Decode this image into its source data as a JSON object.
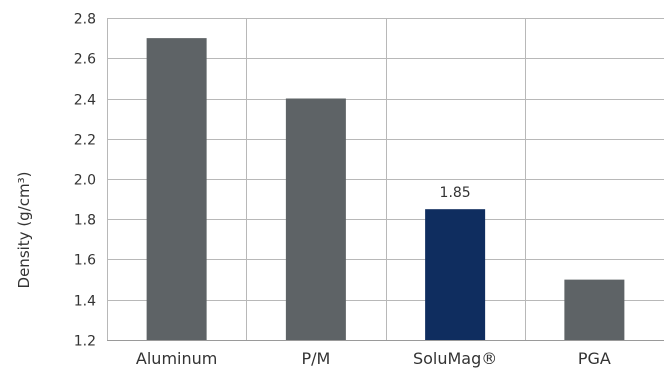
{
  "chart_data": {
    "type": "bar",
    "categories": [
      "Aluminum",
      "P/M",
      "SoluMag®",
      "PGA"
    ],
    "values": [
      2.7,
      2.4,
      1.85,
      1.5
    ],
    "ylabel": "Density (g/cm³)",
    "xlabel": "",
    "ylim": [
      1.2,
      2.8
    ],
    "yticks": [
      "1.2",
      "1.4",
      "1.6",
      "1.8",
      "2.0",
      "2.2",
      "2.4",
      "2.6",
      "2.8"
    ],
    "data_labels": [
      "",
      "",
      "1.85",
      ""
    ],
    "grid": true,
    "colors": {
      "default_bar": "#5e6366",
      "highlight_bar": "#0f2d5f",
      "grid": "#b8b8b8"
    },
    "highlight_index": 2
  }
}
